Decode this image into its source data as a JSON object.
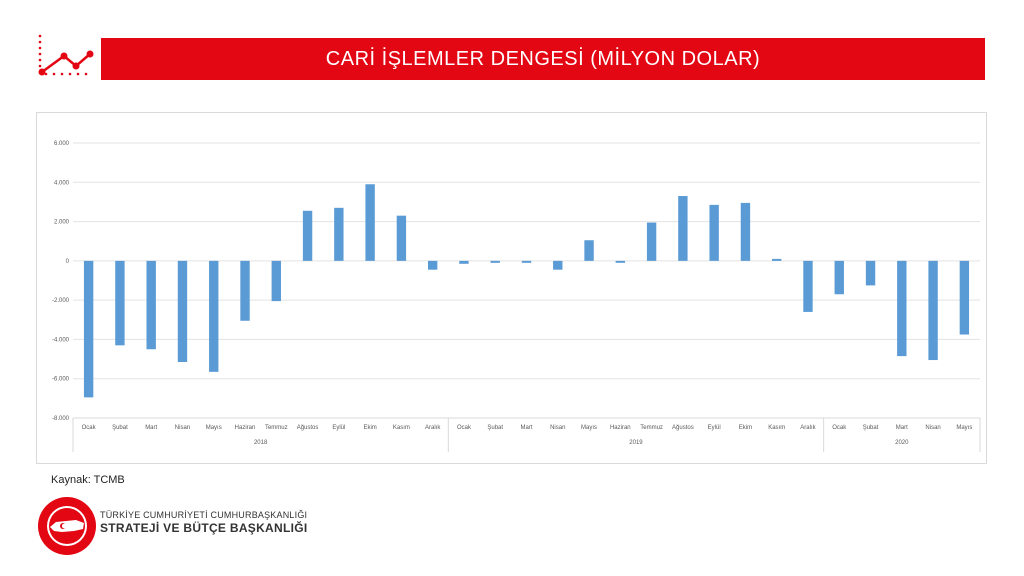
{
  "header": {
    "title": "CARİ İŞLEMLER DENGESİ (MİLYON DOLAR)"
  },
  "icons": {
    "header_icon": "trend-line-icon",
    "footer_logo": "seal-logo-icon"
  },
  "colors": {
    "brand_red": "#e30613",
    "bar_blue": "#5b9bd5"
  },
  "source": "Kaynak: TCMB",
  "footer": {
    "org_line1": "TÜRKİYE CUMHURİYETİ CUMHURBAŞKANLIĞI",
    "org_line2": "STRATEJİ VE BÜTÇE BAŞKANLIĞI"
  },
  "chart_data": {
    "type": "bar",
    "title": "",
    "xlabel": "",
    "ylabel": "",
    "ylim": [
      -8000,
      6000
    ],
    "yticks": [
      6000,
      4000,
      2000,
      0,
      -2000,
      -4000,
      -6000,
      -8000
    ],
    "ytick_labels": [
      "6.000",
      "4.000",
      "2.000",
      "0",
      "-2.000",
      "-4.000",
      "-6.000",
      "-8.000"
    ],
    "grid": true,
    "categories": [
      "Ocak",
      "Şubat",
      "Mart",
      "Nisan",
      "Mayıs",
      "Haziran",
      "Temmuz",
      "Ağustos",
      "Eylül",
      "Ekim",
      "Kasım",
      "Aralık",
      "Ocak",
      "Şubat",
      "Mart",
      "Nisan",
      "Mayıs",
      "Haziran",
      "Temmuz",
      "Ağustos",
      "Eylül",
      "Ekim",
      "Kasım",
      "Aralık",
      "Ocak",
      "Şubat",
      "Mart",
      "Nisan",
      "Mayıs"
    ],
    "groups": [
      {
        "label": "2018",
        "count": 12
      },
      {
        "label": "2019",
        "count": 12
      },
      {
        "label": "2020",
        "count": 5
      }
    ],
    "series": [
      {
        "values": [
          -6950,
          -4300,
          -4500,
          -5150,
          -5650,
          -3050,
          -2050,
          2550,
          2700,
          3900,
          2300,
          -450,
          -150,
          -100,
          -100,
          -450,
          1050,
          -100,
          1950,
          3300,
          2850,
          2950,
          100,
          -2600,
          -1700,
          -1250,
          -4850,
          -5050,
          -3750
        ]
      }
    ]
  }
}
